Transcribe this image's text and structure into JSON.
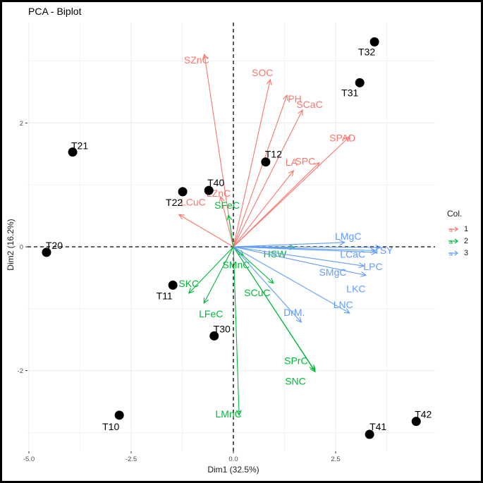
{
  "chart_data": {
    "type": "scatter",
    "subtype": "pca-biplot",
    "title": "PCA - Biplot",
    "xlabel": "Dim1 (32.5%)",
    "ylabel": "Dim2 (16.2%)",
    "xlim": [
      -5.0,
      4.9
    ],
    "ylim": [
      -3.3,
      3.55
    ],
    "xticks": [
      -5.0,
      -2.5,
      0.0,
      2.5
    ],
    "xtick_labels": [
      "-5.0",
      "-2.5",
      "0.0",
      "2.5"
    ],
    "yticks": [
      -2,
      0,
      2
    ],
    "ytick_labels": [
      "-2",
      "0",
      "2"
    ],
    "grid": true,
    "reference_lines": {
      "x": 0,
      "y": 0,
      "style": "dashed"
    },
    "legend": {
      "title": "Col.",
      "placement": "right",
      "entries": [
        {
          "label": "1",
          "color": "#F8766D"
        },
        {
          "label": "2",
          "color": "#00BA38"
        },
        {
          "label": "3",
          "color": "#619CFF"
        }
      ]
    },
    "individuals": [
      {
        "label": "T32",
        "x": 3.45,
        "y": 3.31
      },
      {
        "label": "T31",
        "x": 3.09,
        "y": 2.65
      },
      {
        "label": "T21",
        "x": -3.93,
        "y": 1.53
      },
      {
        "label": "T12",
        "x": 0.79,
        "y": 1.37
      },
      {
        "label": "T40",
        "x": -0.6,
        "y": 0.91
      },
      {
        "label": "T22",
        "x": -1.24,
        "y": 0.89
      },
      {
        "label": "T20",
        "x": -4.57,
        "y": -0.09
      },
      {
        "label": "T11",
        "x": -1.48,
        "y": -0.62
      },
      {
        "label": "T30",
        "x": -0.47,
        "y": -1.44
      },
      {
        "label": "T10",
        "x": -2.79,
        "y": -2.72
      },
      {
        "label": "T41",
        "x": 3.33,
        "y": -3.03
      },
      {
        "label": "T42",
        "x": 4.47,
        "y": -2.82
      }
    ],
    "variables": [
      {
        "label": "SZnC",
        "x": -0.71,
        "y": 3.11,
        "group": "1"
      },
      {
        "label": "SOC",
        "x": 0.9,
        "y": 2.7,
        "group": "1"
      },
      {
        "label": "PH",
        "x": 1.31,
        "y": 2.45,
        "group": "1"
      },
      {
        "label": "SCaC",
        "x": 1.69,
        "y": 2.21,
        "group": "1"
      },
      {
        "label": "SPAD",
        "x": 2.84,
        "y": 1.78,
        "group": "1"
      },
      {
        "label": "SPC",
        "x": 2.1,
        "y": 1.36,
        "group": "1"
      },
      {
        "label": "LA",
        "x": 1.47,
        "y": 1.23,
        "group": "1"
      },
      {
        "label": "LZnC",
        "x": -0.31,
        "y": 0.81,
        "group": "1"
      },
      {
        "label": "LCuC",
        "x": -1.33,
        "y": 0.52,
        "group": "1"
      },
      {
        "label": "SFeC",
        "x": -0.12,
        "y": 0.51,
        "group": "2"
      },
      {
        "label": "HSW",
        "x": 1.5,
        "y": -0.01,
        "group": "2"
      },
      {
        "label": "SMnC",
        "x": 0.24,
        "y": -0.14,
        "group": "2"
      },
      {
        "label": "SCuC",
        "x": 0.98,
        "y": -0.59,
        "group": "2"
      },
      {
        "label": "SKC",
        "x": -1.09,
        "y": -0.75,
        "group": "2"
      },
      {
        "label": "LFeC",
        "x": -0.72,
        "y": -0.91,
        "group": "2"
      },
      {
        "label": "SPrC",
        "x": 1.98,
        "y": -1.99,
        "group": "2"
      },
      {
        "label": "SNC",
        "x": 2.0,
        "y": -2.02,
        "group": "2"
      },
      {
        "label": "LMnC",
        "x": 0.14,
        "y": -2.72,
        "group": "2"
      },
      {
        "label": "LMgC",
        "x": 2.72,
        "y": 0.07,
        "group": "3"
      },
      {
        "label": "TSY",
        "x": 3.6,
        "y": -0.01,
        "group": "3"
      },
      {
        "label": "LCaC",
        "x": 3.47,
        "y": -0.06,
        "group": "3"
      },
      {
        "label": "LPC",
        "x": 3.5,
        "y": -0.09,
        "group": "3"
      },
      {
        "label": "SMgC",
        "x": 3.19,
        "y": -0.31,
        "group": "3"
      },
      {
        "label": "LKC",
        "x": 3.24,
        "y": -0.46,
        "group": "3"
      },
      {
        "label": "LNC",
        "x": 2.84,
        "y": -1.07,
        "group": "3"
      },
      {
        "label": "DrM.",
        "x": 1.66,
        "y": -1.22,
        "group": "3"
      }
    ]
  }
}
